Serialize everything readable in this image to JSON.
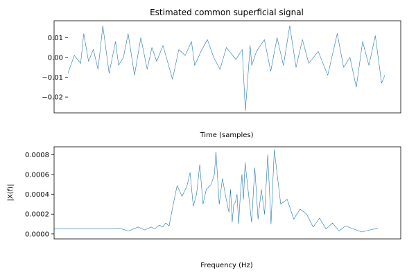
{
  "chart_data": [
    {
      "type": "line",
      "title": "Estimated common superficial signal",
      "xlabel": "Time (samples)",
      "ylabel": "",
      "ylim": [
        -0.028,
        0.0185
      ],
      "yticks": [
        -0.02,
        -0.01,
        0.0,
        0.01
      ],
      "ytick_labels": [
        "−0.02",
        "−0.01",
        "0.00",
        "0.01"
      ],
      "x_tick_labels_shown": false,
      "grid": false,
      "legend": "none",
      "color": "#1f77b4",
      "x_range": [
        0,
        1000
      ],
      "series": [
        {
          "x": [
            0,
            20,
            40,
            50,
            65,
            80,
            95,
            110,
            130,
            150,
            160,
            175,
            190,
            210,
            230,
            250,
            265,
            280,
            300,
            330,
            350,
            370,
            390,
            400,
            420,
            440,
            460,
            480,
            500,
            515,
            530,
            550,
            560,
            575,
            580,
            595,
            620,
            640,
            660,
            680,
            700,
            720,
            740,
            760,
            790,
            820,
            850,
            870,
            890,
            910,
            930,
            950,
            970,
            990,
            1000
          ],
          "values": [
            -0.008,
            0.001,
            -0.003,
            0.012,
            -0.002,
            0.004,
            -0.006,
            0.016,
            -0.008,
            0.008,
            -0.004,
            0.0,
            0.012,
            -0.009,
            0.01,
            -0.006,
            0.005,
            -0.002,
            0.006,
            -0.011,
            0.004,
            0.001,
            0.008,
            -0.004,
            0.003,
            0.009,
            0.0,
            -0.006,
            0.005,
            0.002,
            -0.001,
            0.004,
            -0.027,
            0.006,
            -0.004,
            0.003,
            0.009,
            -0.007,
            0.01,
            -0.004,
            0.016,
            -0.005,
            0.009,
            -0.003,
            0.003,
            -0.009,
            0.012,
            -0.005,
            0.0,
            -0.015,
            0.008,
            -0.004,
            0.011,
            -0.013,
            -0.009
          ]
        }
      ]
    },
    {
      "type": "line",
      "title": "",
      "xlabel": "Frequency (Hz)",
      "ylabel": "|X(f)|",
      "ylim": [
        -5e-05,
        0.00088
      ],
      "yticks": [
        0.0,
        0.0002,
        0.0004,
        0.0006,
        0.0008
      ],
      "ytick_labels": [
        "0.0000",
        "0.0002",
        "0.0004",
        "0.0006",
        "0.0008"
      ],
      "x_tick_labels_shown": false,
      "grid": false,
      "legend": "none",
      "color": "#1f77b4",
      "x_range": [
        0,
        1000
      ],
      "series": [
        {
          "x": [
            0,
            80,
            150,
            180,
            200,
            230,
            260,
            280,
            300,
            310,
            325,
            335,
            345,
            355,
            365,
            380,
            395,
            410,
            420,
            430,
            440,
            450,
            460,
            470,
            485,
            495,
            500,
            510,
            520,
            530,
            540,
            545,
            550,
            555,
            560,
            565,
            570,
            575,
            580,
            585,
            590,
            600,
            610,
            620,
            630,
            640,
            650,
            660,
            670,
            680,
            700,
            720,
            740,
            760,
            780,
            800,
            820,
            840,
            860,
            880,
            900,
            950,
            1000
          ],
          "values": [
            5e-05,
            5e-05,
            5e-05,
            5e-05,
            6e-05,
            3e-05,
            7e-05,
            4e-05,
            7e-05,
            5e-05,
            9e-05,
            7e-05,
            0.00011,
            8e-05,
            0.00025,
            0.00049,
            0.00038,
            0.00048,
            0.00062,
            0.00028,
            0.0004,
            0.0007,
            0.0003,
            0.00045,
            0.0005,
            0.0006,
            0.00083,
            0.0003,
            0.00056,
            0.00038,
            0.00022,
            0.00045,
            0.00012,
            0.0003,
            0.00032,
            0.0004,
            0.0001,
            0.00038,
            0.0006,
            0.00035,
            0.00072,
            0.00042,
            0.00012,
            0.00067,
            0.00015,
            0.00045,
            0.0002,
            0.0008,
            0.0001,
            0.00085,
            0.0003,
            0.00035,
            0.00015,
            0.00025,
            0.0002,
            7e-05,
            0.00016,
            5e-05,
            0.00011,
            3e-05,
            8e-05,
            2e-05,
            6e-05
          ]
        }
      ]
    }
  ]
}
